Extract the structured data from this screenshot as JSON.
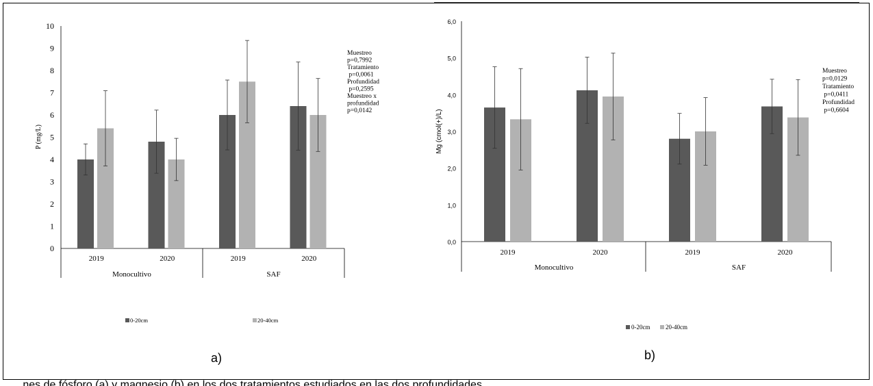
{
  "chart_data": [
    {
      "type": "bar",
      "ylabel": "P (mg/L)",
      "ylim": [
        0,
        10
      ],
      "ticks": [
        "0",
        "1",
        "2",
        "3",
        "4",
        "5",
        "6",
        "7",
        "8",
        "9",
        "10"
      ],
      "years": [
        "2019",
        "2020",
        "2019",
        "2020"
      ],
      "groups": [
        "Monocultivo",
        "SAF"
      ],
      "series": [
        {
          "name": "0-20cm",
          "color": "#595959",
          "values": [
            4.0,
            4.8,
            6.0,
            6.4
          ],
          "errors": [
            0.7,
            1.42,
            1.57,
            1.98
          ]
        },
        {
          "name": "20-40cm",
          "color": "#b2b2b2",
          "values": [
            5.4,
            4.0,
            7.5,
            6.0
          ],
          "errors": [
            1.69,
            0.95,
            1.85,
            1.64
          ]
        }
      ],
      "stats_text": [
        "Muestreo",
        "p=0,7992",
        "Tratamiento",
        " p=0,0061",
        "Profundidad",
        " p=0,2595",
        "Muestreo x",
        "profundidad",
        "p=0,0142"
      ],
      "panel_label": "a)",
      "legend_position": "bottom"
    },
    {
      "type": "bar",
      "ylabel": "Mg (cmol(+)/L)",
      "ylim": [
        0,
        6
      ],
      "ticks": [
        "0,0",
        "1,0",
        "2,0",
        "3,0",
        "4,0",
        "5,0",
        "6,0"
      ],
      "years": [
        "2019",
        "2020",
        "2019",
        "2020"
      ],
      "groups": [
        "Monocultivo",
        "SAF"
      ],
      "series": [
        {
          "name": "0-20cm",
          "color": "#595959",
          "values": [
            3.65,
            4.12,
            2.8,
            3.68
          ],
          "errors": [
            1.11,
            0.9,
            0.69,
            0.74
          ]
        },
        {
          "name": "20-40cm",
          "color": "#b2b2b2",
          "values": [
            3.33,
            3.95,
            3.0,
            3.38
          ],
          "errors": [
            1.38,
            1.18,
            0.92,
            1.03
          ]
        }
      ],
      "stats_text": [
        "Muestreo",
        "p=0,0129",
        "Tratamiento",
        " p=0,0411",
        "Profundidad",
        " p=0,6604"
      ],
      "panel_label": "b)",
      "legend_position": "bottom"
    }
  ],
  "caption_fragment": "...nes de fósforo (a) y magnesio (b) en los dos tratamientos estudiados en las dos profundidades..."
}
